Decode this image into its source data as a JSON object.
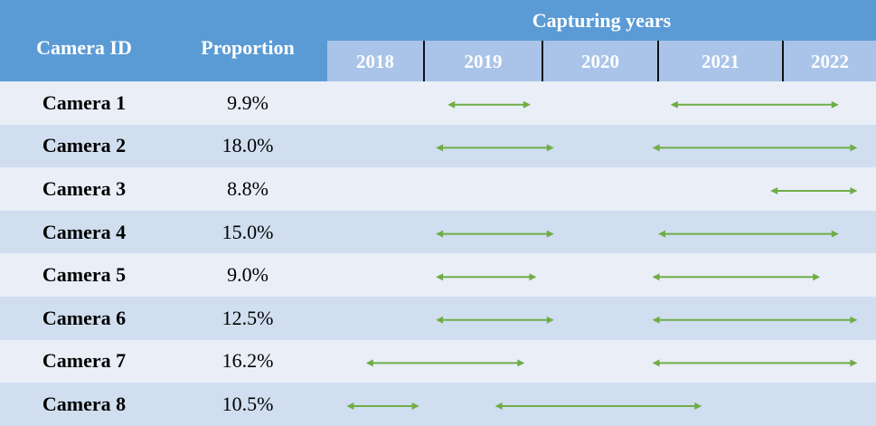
{
  "header": {
    "camera_id": "Camera ID",
    "proportion": "Proportion",
    "capturing_years": "Capturing years",
    "years": [
      "2018",
      "2019",
      "2020",
      "2021",
      "2022"
    ]
  },
  "arrow_color": "#70ad47",
  "rows": [
    {
      "camera": "Camera 1",
      "proportion": "9.9%",
      "periods": [
        [
          2019.2,
          2019.9
        ],
        [
          2021.1,
          2022.6
        ]
      ]
    },
    {
      "camera": "Camera 2",
      "proportion": "18.0%",
      "periods": [
        [
          2019.1,
          2020.1
        ],
        [
          2020.95,
          2022.8
        ]
      ]
    },
    {
      "camera": "Camera 3",
      "proportion": "8.8%",
      "periods": [
        [
          2021.9,
          2022.8
        ]
      ]
    },
    {
      "camera": "Camera 4",
      "proportion": "15.0%",
      "periods": [
        [
          2019.1,
          2020.1
        ],
        [
          2021.0,
          2022.6
        ]
      ]
    },
    {
      "camera": "Camera 5",
      "proportion": "9.0%",
      "periods": [
        [
          2019.1,
          2019.95
        ],
        [
          2020.95,
          2022.4
        ]
      ]
    },
    {
      "camera": "Camera 6",
      "proportion": "12.5%",
      "periods": [
        [
          2019.1,
          2020.1
        ],
        [
          2020.95,
          2022.8
        ]
      ]
    },
    {
      "camera": "Camera 7",
      "proportion": "16.2%",
      "periods": [
        [
          2018.4,
          2019.85
        ],
        [
          2020.95,
          2022.8
        ]
      ]
    },
    {
      "camera": "Camera 8",
      "proportion": "10.5%",
      "periods": [
        [
          2018.2,
          2018.95
        ],
        [
          2019.6,
          2021.35
        ]
      ]
    }
  ]
}
